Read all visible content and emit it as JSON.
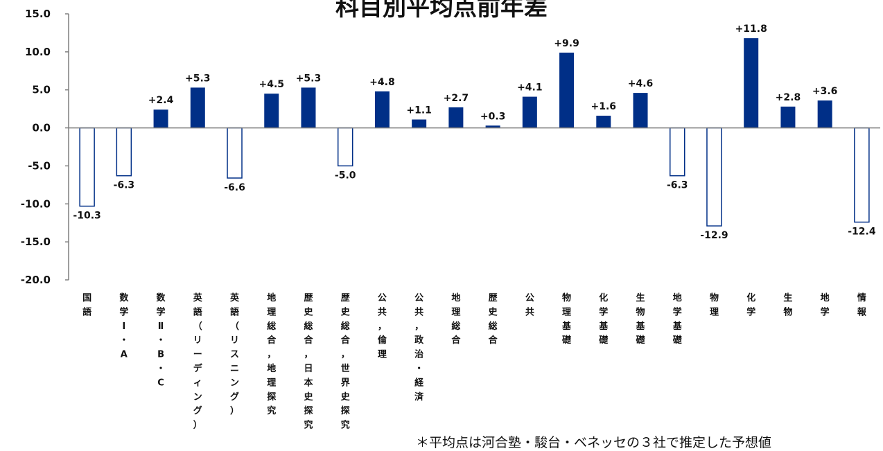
{
  "chart_data": {
    "type": "bar",
    "title": "科目別平均点前年差",
    "categories": [
      "国語",
      "数学Ⅰ・A",
      "数学Ⅱ・B・C",
      "英語（リーディング）",
      "英語（リスニング）",
      "地理総合，地理探究",
      "歴史総合，日本史探究",
      "歴史総合，世界史探究",
      "公共，倫理",
      "公共，政治・経済",
      "地理総合",
      "歴史総合",
      "公共",
      "物理基礎",
      "化学基礎",
      "生物基礎",
      "地学基礎",
      "物理",
      "化学",
      "生物",
      "地学",
      "情報"
    ],
    "values": [
      -10.3,
      -6.3,
      2.4,
      5.3,
      -6.6,
      4.5,
      5.3,
      -5.0,
      4.8,
      1.1,
      2.7,
      0.3,
      4.1,
      9.9,
      1.6,
      4.6,
      -6.3,
      -12.9,
      11.8,
      2.8,
      3.6,
      -12.4
    ],
    "value_labels": [
      "-10.3",
      "-6.3",
      "+2.4",
      "+5.3",
      "-6.6",
      "+4.5",
      "+5.3",
      "-5.0",
      "+4.8",
      "+1.1",
      "+2.7",
      "+0.3",
      "+4.1",
      "+9.9",
      "+1.6",
      "+4.6",
      "-6.3",
      "-12.9",
      "+11.8",
      "+2.8",
      "+3.6",
      "-12.4"
    ],
    "ylim": [
      -20,
      15
    ],
    "yticks": [
      15,
      10,
      5,
      0,
      -5,
      -10,
      -15,
      -20
    ],
    "ytick_labels": [
      "15.0",
      "10.0",
      "5.0",
      "0.0",
      "-5.0",
      "-10.0",
      "-15.0",
      "-20.0"
    ],
    "grid": false,
    "colors": {
      "positive_fill": "#002f87",
      "negative_fill": "#ffffff",
      "negative_stroke": "#002f87",
      "axis": "#7f7f7f"
    }
  },
  "footnote": "＊平均点は河合塾・駿台・ベネッセの３社で推定した予想値"
}
